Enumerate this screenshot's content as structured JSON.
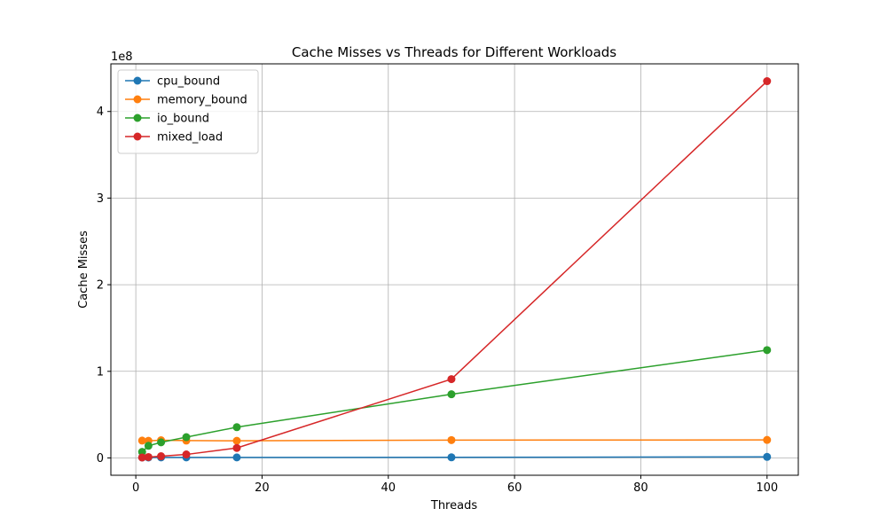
{
  "chart_data": {
    "type": "line",
    "title": "Cache Misses vs Threads for Different Workloads",
    "xlabel": "Threads",
    "ylabel": "Cache Misses",
    "y_offset_label": "1e8",
    "y_scale_factor": 100000000,
    "xlim": [
      -3.95,
      104.95
    ],
    "ylim": [
      -20000000,
      455000000
    ],
    "xticks": [
      0,
      20,
      40,
      60,
      80,
      100
    ],
    "yticks": [
      0,
      100000000,
      200000000,
      300000000,
      400000000
    ],
    "ytick_labels": [
      "0",
      "1",
      "2",
      "3",
      "4"
    ],
    "grid": true,
    "legend_position": "upper left",
    "x": [
      1,
      2,
      4,
      8,
      16,
      50,
      100
    ],
    "series": [
      {
        "name": "cpu_bound",
        "color": "#1f77b4",
        "values": [
          500000,
          500000,
          600000,
          600000,
          600000,
          700000,
          1200000
        ]
      },
      {
        "name": "memory_bound",
        "color": "#ff7f0e",
        "values": [
          20000000,
          19800000,
          20400000,
          20000000,
          19800000,
          20600000,
          20800000
        ]
      },
      {
        "name": "io_bound",
        "color": "#2ca02c",
        "values": [
          7000000,
          14000000,
          18000000,
          24000000,
          35500000,
          73500000,
          124500000
        ]
      },
      {
        "name": "mixed_load",
        "color": "#d62728",
        "values": [
          500000,
          1000000,
          2000000,
          4000000,
          11500000,
          91000000,
          435000000
        ]
      }
    ]
  }
}
